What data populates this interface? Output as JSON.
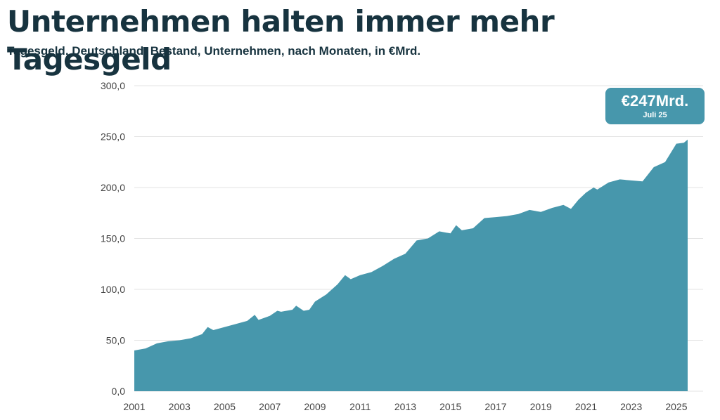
{
  "title": "Unternehmen halten immer mehr Tagesgeld",
  "subtitle": "Tagesgeld, Deutschland, Bestand, Unternehmen, nach Monaten, in €Mrd.",
  "colors": {
    "title": "#17333f",
    "area": "#4797ac",
    "grid": "#e3e3e3",
    "axis_text": "#444444"
  },
  "callout": {
    "value": "€247Mrd.",
    "date": "Juli 25"
  },
  "chart_data": {
    "type": "area",
    "title": "Unternehmen halten immer mehr Tagesgeld",
    "subtitle": "Tagesgeld, Deutschland, Bestand, Unternehmen, nach Monaten, in €Mrd.",
    "xlabel": "",
    "ylabel": "",
    "xlim": [
      "2001-01",
      "2025-07"
    ],
    "ylim": [
      0,
      300
    ],
    "y_ticks": [
      0,
      50,
      100,
      150,
      200,
      250,
      300
    ],
    "y_tick_labels": [
      "0,0",
      "50,0",
      "100,0",
      "150,0",
      "200,0",
      "250,0",
      "300,0"
    ],
    "x_tick_labels": [
      "2001",
      "2003",
      "2005",
      "2007",
      "2009",
      "2011",
      "2013",
      "2015",
      "2017",
      "2019",
      "2021",
      "2023",
      "2025"
    ],
    "grid": "horizontal",
    "series": [
      {
        "points": [
          [
            "2001-01",
            40
          ],
          [
            "2001-07",
            42
          ],
          [
            "2002-01",
            47
          ],
          [
            "2002-07",
            49
          ],
          [
            "2003-01",
            50
          ],
          [
            "2003-07",
            52
          ],
          [
            "2004-01",
            56
          ],
          [
            "2004-04",
            63
          ],
          [
            "2004-07",
            60
          ],
          [
            "2005-01",
            63
          ],
          [
            "2005-07",
            66
          ],
          [
            "2006-01",
            69
          ],
          [
            "2006-05",
            75
          ],
          [
            "2006-07",
            70
          ],
          [
            "2007-01",
            74
          ],
          [
            "2007-05",
            79
          ],
          [
            "2007-07",
            78
          ],
          [
            "2008-01",
            80
          ],
          [
            "2008-03",
            84
          ],
          [
            "2008-07",
            79
          ],
          [
            "2008-10",
            80
          ],
          [
            "2009-01",
            88
          ],
          [
            "2009-07",
            95
          ],
          [
            "2010-01",
            105
          ],
          [
            "2010-05",
            114
          ],
          [
            "2010-08",
            110
          ],
          [
            "2011-01",
            114
          ],
          [
            "2011-07",
            117
          ],
          [
            "2012-01",
            123
          ],
          [
            "2012-07",
            130
          ],
          [
            "2013-01",
            135
          ],
          [
            "2013-07",
            148
          ],
          [
            "2014-01",
            150
          ],
          [
            "2014-07",
            157
          ],
          [
            "2015-01",
            155
          ],
          [
            "2015-04",
            163
          ],
          [
            "2015-07",
            158
          ],
          [
            "2016-01",
            160
          ],
          [
            "2016-07",
            170
          ],
          [
            "2017-01",
            171
          ],
          [
            "2017-07",
            172
          ],
          [
            "2018-01",
            174
          ],
          [
            "2018-07",
            178
          ],
          [
            "2019-01",
            176
          ],
          [
            "2019-07",
            180
          ],
          [
            "2020-01",
            183
          ],
          [
            "2020-05",
            179
          ],
          [
            "2020-09",
            188
          ],
          [
            "2021-01",
            195
          ],
          [
            "2021-05",
            200
          ],
          [
            "2021-07",
            198
          ],
          [
            "2022-01",
            205
          ],
          [
            "2022-07",
            208
          ],
          [
            "2023-01",
            207
          ],
          [
            "2023-07",
            206
          ],
          [
            "2024-01",
            220
          ],
          [
            "2024-07",
            225
          ],
          [
            "2025-01",
            243
          ],
          [
            "2025-05",
            244
          ],
          [
            "2025-07",
            247
          ]
        ]
      }
    ]
  }
}
